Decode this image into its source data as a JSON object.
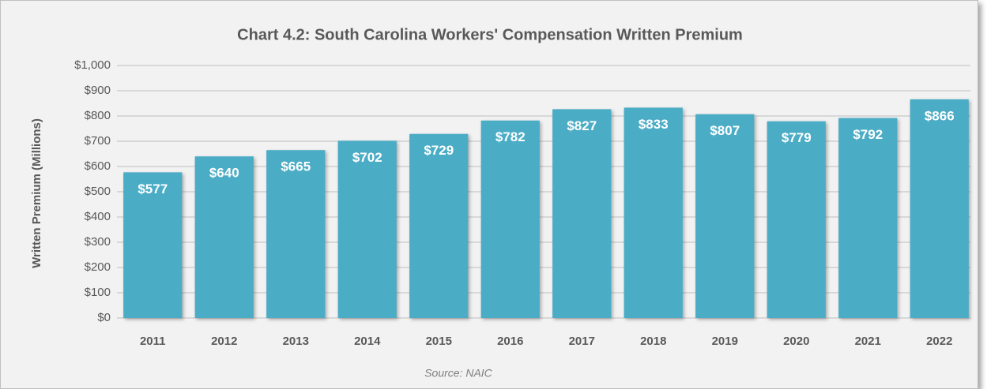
{
  "chart_data": {
    "type": "bar",
    "title": "Chart 4.2: South Carolina Workers' Compensation Written Premium",
    "ylabel": "Written Premium (Millions)",
    "source": "Source: NAIC",
    "categories": [
      "2011",
      "2012",
      "2013",
      "2014",
      "2015",
      "2016",
      "2017",
      "2018",
      "2019",
      "2020",
      "2021",
      "2022"
    ],
    "values": [
      577,
      640,
      665,
      702,
      729,
      782,
      827,
      833,
      807,
      779,
      792,
      866
    ],
    "value_labels": [
      "$577",
      "$640",
      "$665",
      "$702",
      "$729",
      "$782",
      "$827",
      "$833",
      "$807",
      "$779",
      "$792",
      "$866"
    ],
    "color": "#4bacc6",
    "ylim": [
      0,
      1000
    ],
    "yticks": [
      {
        "value": 0,
        "label": "$0"
      },
      {
        "value": 100,
        "label": "$100"
      },
      {
        "value": 200,
        "label": "$200"
      },
      {
        "value": 300,
        "label": "$300"
      },
      {
        "value": 400,
        "label": "$400"
      },
      {
        "value": 500,
        "label": "$500"
      },
      {
        "value": 600,
        "label": "$600"
      },
      {
        "value": 700,
        "label": "$700"
      },
      {
        "value": 800,
        "label": "$800"
      },
      {
        "value": 900,
        "label": "$900"
      },
      {
        "value": 1000,
        "label": "$1,000"
      }
    ],
    "grid": true
  }
}
